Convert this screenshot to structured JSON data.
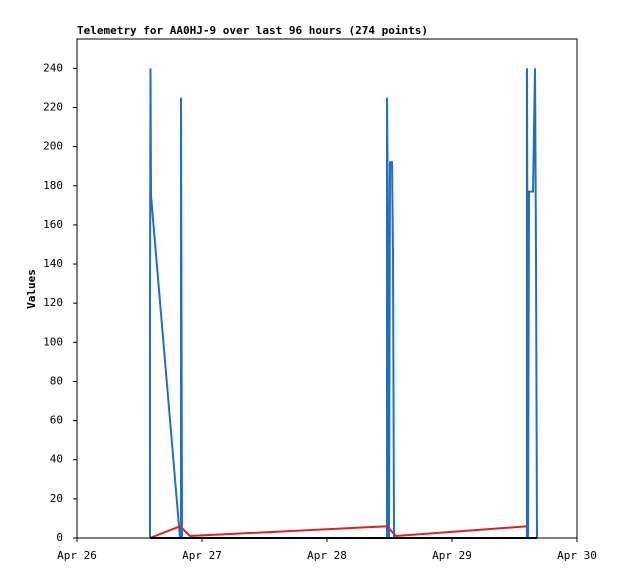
{
  "chart_data": {
    "type": "line",
    "title": "Telemetry for AA0HJ-9 over last 96 hours (274 points)",
    "y_label": "Values",
    "xlim": [
      0,
      4
    ],
    "xticks": [
      {
        "value": 0,
        "label": "Apr 26"
      },
      {
        "value": 1,
        "label": "Apr 27"
      },
      {
        "value": 2,
        "label": "Apr 28"
      },
      {
        "value": 3,
        "label": "Apr 29"
      },
      {
        "value": 4,
        "label": "Apr 30"
      }
    ],
    "ylim": [
      0,
      255
    ],
    "yticks": [
      0,
      20,
      40,
      60,
      80,
      100,
      120,
      140,
      160,
      180,
      200,
      220,
      240
    ],
    "series": [
      {
        "color": "#1f6fc5",
        "x": [
          0.584,
          0.584,
          0.588,
          0.592,
          0.824,
          0.832,
          0.832,
          0.84,
          2.48,
          2.48,
          2.488,
          2.496,
          2.504,
          2.52,
          2.528,
          2.536,
          3.6,
          3.6,
          3.608,
          3.616,
          3.648,
          3.664,
          3.672,
          3.68
        ],
        "values": [
          0,
          120,
          240,
          175,
          0,
          0,
          225,
          0,
          0,
          225,
          160,
          0,
          192,
          192,
          145,
          0,
          0,
          240,
          0,
          177,
          177,
          240,
          145,
          0
        ]
      },
      {
        "color": "#e02020",
        "x": [
          0.584,
          0.824,
          0.904,
          2.48,
          2.552,
          3.6
        ],
        "values": [
          0,
          6,
          1,
          6,
          1,
          6
        ]
      },
      {
        "color": "#000000",
        "x": [
          0.584,
          3.68
        ],
        "values": [
          0,
          0
        ]
      }
    ]
  }
}
